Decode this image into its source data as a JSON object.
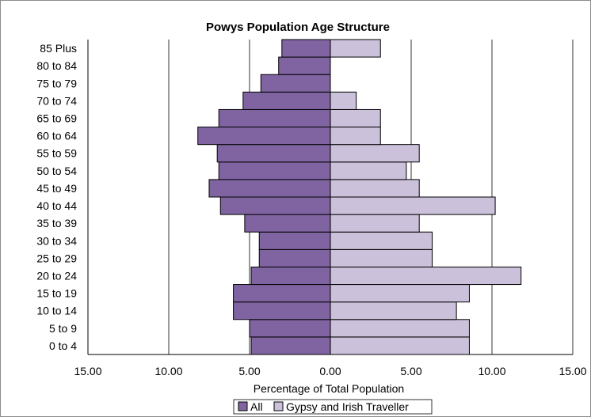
{
  "chart_data": {
    "type": "bar",
    "orientation": "horizontal",
    "subtype": "population-pyramid",
    "title": "Powys Population  Age Structure",
    "xlabel": "Percentage of Total Population",
    "ylabel": "",
    "xlim": [
      -15,
      15
    ],
    "x_ticks": [
      -15,
      -10,
      -5,
      0,
      5,
      10,
      15
    ],
    "x_tick_labels": [
      "15.00",
      "10.00",
      "5.00",
      "0.00",
      "5.00",
      "10.00",
      "15.00"
    ],
    "grid": "vertical major gridlines",
    "legend_position": "bottom",
    "categories": [
      "0 to 4",
      "5 to 9",
      "10 to 14",
      "15 to 19",
      "20 to 24",
      "25 to 29",
      "30 to 34",
      "35 to 39",
      "40 to 44",
      "45 to 49",
      "50 to 54",
      "55 to 59",
      "60 to 64",
      "65 to 69",
      "70 to 74",
      "75 to 79",
      "80 to 84",
      "85 Plus"
    ],
    "series": [
      {
        "name": "All",
        "side": "left",
        "color": "#8064a2",
        "values": [
          4.9,
          5.0,
          6.0,
          6.0,
          4.9,
          4.4,
          4.4,
          5.3,
          6.8,
          7.5,
          6.9,
          7.0,
          8.2,
          6.9,
          5.4,
          4.3,
          3.2,
          3.0
        ]
      },
      {
        "name": "Gypsy and Irish Traveller",
        "side": "right",
        "color": "#ccc1da",
        "values": [
          8.6,
          8.6,
          7.8,
          8.6,
          11.8,
          6.3,
          6.3,
          5.5,
          10.2,
          5.5,
          4.7,
          5.5,
          3.1,
          3.1,
          1.6,
          0.0,
          0.0,
          3.1
        ]
      }
    ]
  }
}
